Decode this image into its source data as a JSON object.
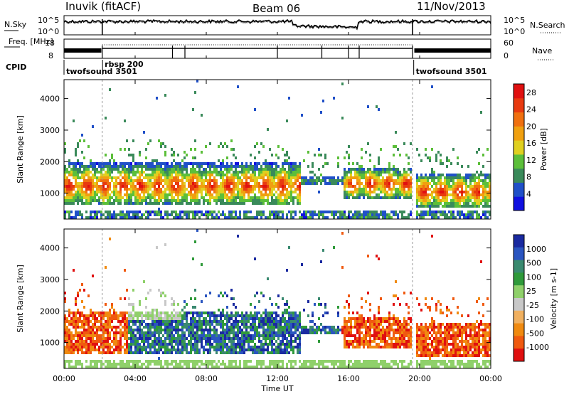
{
  "header": {
    "station": "Inuvik (fitACF)",
    "beam": "Beam 06",
    "date": "11/Nov/2013"
  },
  "colors": {
    "power_scale": [
      "#1010e0",
      "#2050c8",
      "#3a8a5a",
      "#5cbf3a",
      "#e0d020",
      "#f0a010",
      "#f07010",
      "#e83a10",
      "#e01010"
    ],
    "velocity_scale": [
      "#e01010",
      "#f05a10",
      "#f08a10",
      "#f0b060",
      "#c8c8c8",
      "#8fd06a",
      "#2f9a3a",
      "#3a8a70",
      "#2a55c0",
      "#1a2aa0"
    ]
  },
  "chart_data": [
    {
      "type": "line",
      "name": "noise-panel",
      "ylabel_left": "N.Sky",
      "ylabel_right": "N.Search",
      "left_ticks": [
        "10^5",
        "10^0"
      ],
      "right_ticks": [
        "10^5",
        "10^0"
      ],
      "x": [
        "00:00",
        "24:00"
      ]
    },
    {
      "type": "line",
      "name": "frequency-panel",
      "ylabel_left": "Freq. [MHz]",
      "ylabel_right": "Nave",
      "left_ticks": [
        "18",
        "8"
      ],
      "right_ticks": [
        "60",
        "0"
      ],
      "cpid_label": "CPID",
      "cpid_segments": [
        {
          "label": "twofsound 3501",
          "start": "00:00",
          "end": "02:10"
        },
        {
          "label": "rbsp 200",
          "start": "02:10",
          "end": "19:40"
        },
        {
          "label": "twofsound 3501",
          "start": "19:40",
          "end": "24:00"
        }
      ]
    },
    {
      "type": "heatmap",
      "name": "power",
      "ylabel": "Slant Range [km]",
      "y_ticks": [
        1000,
        2000,
        3000,
        4000
      ],
      "ylim": [
        180,
        4600
      ],
      "colorbar_label": "Power [dB]",
      "colorbar_ticks": [
        4,
        8,
        12,
        16,
        20,
        24,
        28
      ],
      "colorbar_range": [
        0,
        30
      ]
    },
    {
      "type": "heatmap",
      "name": "velocity",
      "ylabel": "Slant Range [km]",
      "y_ticks": [
        1000,
        2000,
        3000,
        4000
      ],
      "ylim": [
        180,
        4600
      ],
      "colorbar_label": "Velocity [m s-1]",
      "colorbar_ticks": [
        "1000",
        "500",
        "100",
        "25",
        "-25",
        "-100",
        "-500",
        "-1000"
      ]
    }
  ],
  "x_axis": {
    "label": "Time UT",
    "ticks": [
      "00:00",
      "04:00",
      "08:00",
      "12:00",
      "16:00",
      "20:00",
      "00:00"
    ]
  }
}
